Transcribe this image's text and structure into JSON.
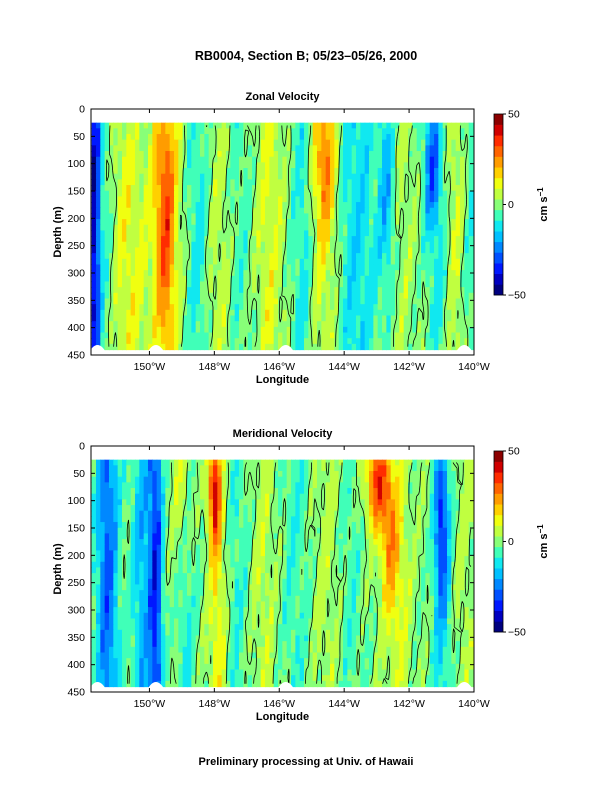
{
  "page_title": "RB0004, Section B; 05/23–05/26, 2000",
  "footer": "Preliminary processing at Univ. of Hawaii",
  "colormap": [
    "#00007f",
    "#0000c0",
    "#0018ff",
    "#0050ff",
    "#0088ff",
    "#00c0ff",
    "#10e8f0",
    "#40ffb8",
    "#88ff78",
    "#c0ff40",
    "#f0ff10",
    "#ffd000",
    "#ff9c00",
    "#ff6400",
    "#ff2c00",
    "#d00000",
    "#8c0000"
  ],
  "chart_data": [
    {
      "type": "heatmap",
      "title": "Zonal Velocity",
      "xlabel": "Longitude",
      "ylabel": "Depth (m)",
      "xlim": [
        -151.8,
        -140
      ],
      "ylim": [
        450,
        0
      ],
      "data_depth_range": [
        25,
        440
      ],
      "x_ticks": [
        -150,
        -148,
        -146,
        -144,
        -142,
        -140
      ],
      "x_tick_labels": [
        "150°W",
        "148°W",
        "146°W",
        "144°W",
        "142°W",
        "140°W"
      ],
      "y_ticks": [
        0,
        50,
        100,
        150,
        200,
        250,
        300,
        350,
        400,
        450
      ],
      "y_tick_labels": [
        "0",
        "50",
        "100",
        "150",
        "200",
        "250",
        "300",
        "350",
        "400",
        "450"
      ],
      "colorbar": {
        "range": [
          -50,
          50
        ],
        "tick_values": [
          50,
          0,
          -50
        ],
        "tick_labels": [
          "50",
          "0",
          "−50"
        ],
        "unit": "cm s",
        "unit_exp": "−1"
      },
      "features": [
        {
          "lon": -151.7,
          "depth": 150,
          "value": -40,
          "wlon": 0.18,
          "wdep": 700
        },
        {
          "lon": -151.3,
          "depth": 150,
          "value": -8,
          "wlon": 0.35,
          "wdep": 700
        },
        {
          "lon": -150.9,
          "depth": 150,
          "value": 6,
          "wlon": 0.45,
          "wdep": 500
        },
        {
          "lon": -149.5,
          "depth": 260,
          "value": 28,
          "wlon": 0.35,
          "wdep": 260
        },
        {
          "lon": -149.5,
          "depth": 80,
          "value": 12,
          "wlon": 0.4,
          "wdep": 150
        },
        {
          "lon": -150.5,
          "depth": 300,
          "value": 8,
          "wlon": 0.6,
          "wdep": 300
        },
        {
          "lon": -148.5,
          "depth": 200,
          "value": -10,
          "wlon": 0.35,
          "wdep": 700
        },
        {
          "lon": -147.9,
          "depth": 300,
          "value": 6,
          "wlon": 0.4,
          "wdep": 400
        },
        {
          "lon": -147.2,
          "depth": 200,
          "value": -6,
          "wlon": 0.35,
          "wdep": 600
        },
        {
          "lon": -146.3,
          "depth": 230,
          "value": 10,
          "wlon": 0.4,
          "wdep": 500
        },
        {
          "lon": -145.3,
          "depth": 230,
          "value": -10,
          "wlon": 0.35,
          "wdep": 700
        },
        {
          "lon": -144.6,
          "depth": 90,
          "value": 22,
          "wlon": 0.35,
          "wdep": 140
        },
        {
          "lon": -144.6,
          "depth": 260,
          "value": 8,
          "wlon": 0.4,
          "wdep": 400
        },
        {
          "lon": -143.6,
          "depth": 250,
          "value": -14,
          "wlon": 0.6,
          "wdep": 700
        },
        {
          "lon": -142.7,
          "depth": 150,
          "value": -18,
          "wlon": 0.25,
          "wdep": 200
        },
        {
          "lon": -142.2,
          "depth": 250,
          "value": 4,
          "wlon": 0.4,
          "wdep": 400
        },
        {
          "lon": -141.3,
          "depth": 100,
          "value": -25,
          "wlon": 0.25,
          "wdep": 120
        },
        {
          "lon": -141.1,
          "depth": 300,
          "value": -10,
          "wlon": 0.35,
          "wdep": 400
        },
        {
          "lon": -140.6,
          "depth": 250,
          "value": 8,
          "wlon": 0.3,
          "wdep": 500
        },
        {
          "lon": -140.1,
          "depth": 200,
          "value": -8,
          "wlon": 0.2,
          "wdep": 600
        }
      ]
    },
    {
      "type": "heatmap",
      "title": "Meridional Velocity",
      "xlabel": "Longitude",
      "ylabel": "Depth (m)",
      "xlim": [
        -151.8,
        -140
      ],
      "ylim": [
        450,
        0
      ],
      "data_depth_range": [
        25,
        440
      ],
      "x_ticks": [
        -150,
        -148,
        -146,
        -144,
        -142,
        -140
      ],
      "x_tick_labels": [
        "150°W",
        "148°W",
        "146°W",
        "144°W",
        "142°W",
        "140°W"
      ],
      "y_ticks": [
        0,
        50,
        100,
        150,
        200,
        250,
        300,
        350,
        400,
        450
      ],
      "y_tick_labels": [
        "0",
        "50",
        "100",
        "150",
        "200",
        "250",
        "300",
        "350",
        "400",
        "450"
      ],
      "colorbar": {
        "range": [
          -50,
          50
        ],
        "tick_values": [
          50,
          0,
          -50
        ],
        "tick_labels": [
          "50",
          "0",
          "−50"
        ],
        "unit": "cm s",
        "unit_exp": "−1"
      },
      "features": [
        {
          "lon": -151.3,
          "depth": 150,
          "value": -28,
          "wlon": 0.35,
          "wdep": 700
        },
        {
          "lon": -150.2,
          "depth": 250,
          "value": -18,
          "wlon": 0.35,
          "wdep": 700
        },
        {
          "lon": -149.8,
          "depth": 250,
          "value": -32,
          "wlon": 0.2,
          "wdep": 450
        },
        {
          "lon": -149.0,
          "depth": 80,
          "value": 14,
          "wlon": 0.25,
          "wdep": 150
        },
        {
          "lon": -148.9,
          "depth": 300,
          "value": -10,
          "wlon": 0.3,
          "wdep": 500
        },
        {
          "lon": -148.0,
          "depth": 80,
          "value": 35,
          "wlon": 0.18,
          "wdep": 100
        },
        {
          "lon": -147.9,
          "depth": 270,
          "value": 14,
          "wlon": 0.25,
          "wdep": 350
        },
        {
          "lon": -147.3,
          "depth": 200,
          "value": -8,
          "wlon": 0.35,
          "wdep": 600
        },
        {
          "lon": -146.5,
          "depth": 230,
          "value": 6,
          "wlon": 0.35,
          "wdep": 500
        },
        {
          "lon": -145.5,
          "depth": 200,
          "value": -8,
          "wlon": 0.4,
          "wdep": 600
        },
        {
          "lon": -144.5,
          "depth": 230,
          "value": 5,
          "wlon": 0.4,
          "wdep": 500
        },
        {
          "lon": -143.8,
          "depth": 220,
          "value": -6,
          "wlon": 0.4,
          "wdep": 600
        },
        {
          "lon": -143.0,
          "depth": 60,
          "value": 32,
          "wlon": 0.35,
          "wdep": 90
        },
        {
          "lon": -142.6,
          "depth": 160,
          "value": 22,
          "wlon": 0.3,
          "wdep": 150
        },
        {
          "lon": -142.3,
          "depth": 300,
          "value": 8,
          "wlon": 0.35,
          "wdep": 300
        },
        {
          "lon": -141.0,
          "depth": 130,
          "value": -28,
          "wlon": 0.22,
          "wdep": 160
        },
        {
          "lon": -141.0,
          "depth": 330,
          "value": -12,
          "wlon": 0.3,
          "wdep": 300
        },
        {
          "lon": -140.3,
          "depth": 250,
          "value": 4,
          "wlon": 0.3,
          "wdep": 500
        }
      ]
    }
  ]
}
